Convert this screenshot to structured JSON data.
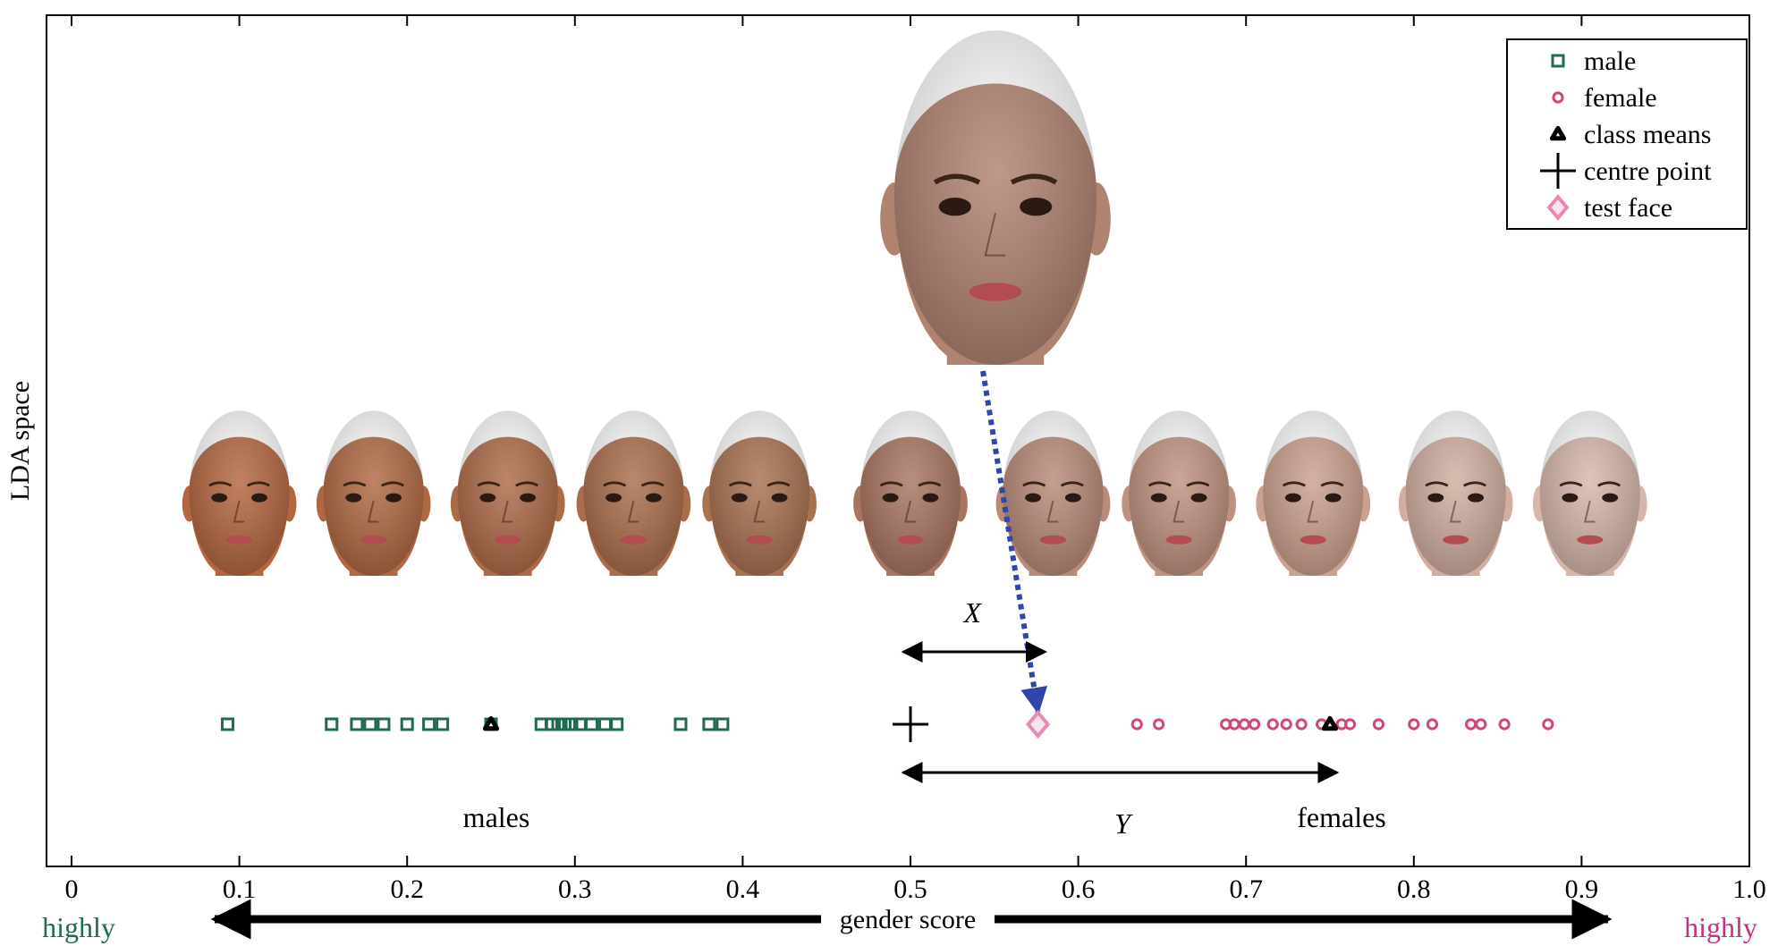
{
  "chart_data": {
    "type": "scatter",
    "ylabel": "LDA space",
    "xlabel": "gender score",
    "xlim": [
      0,
      1.0
    ],
    "x_ticks": [
      "0",
      "0.1",
      "0.2",
      "0.3",
      "0.4",
      "0.5",
      "0.6",
      "0.7",
      "0.8",
      "0.9",
      "1.0"
    ],
    "legend_position": "top-right",
    "series": [
      {
        "name": "male",
        "marker": "square",
        "color": "#1f6b4f",
        "x": [
          0.093,
          0.155,
          0.17,
          0.178,
          0.186,
          0.2,
          0.213,
          0.221,
          0.25,
          0.28,
          0.286,
          0.29,
          0.294,
          0.298,
          0.303,
          0.31,
          0.318,
          0.325,
          0.363,
          0.38,
          0.388
        ]
      },
      {
        "name": "female",
        "marker": "circle",
        "color": "#d1467a",
        "x": [
          0.635,
          0.648,
          0.688,
          0.693,
          0.699,
          0.705,
          0.716,
          0.724,
          0.733,
          0.745,
          0.757,
          0.762,
          0.779,
          0.8,
          0.811,
          0.834,
          0.84,
          0.854,
          0.88
        ]
      },
      {
        "name": "class means",
        "marker": "triangle",
        "color": "#000000",
        "x": [
          0.25,
          0.75
        ]
      },
      {
        "name": "centre point",
        "marker": "plus",
        "color": "#000000",
        "x": [
          0.5
        ]
      },
      {
        "name": "test face",
        "marker": "diamond",
        "color": "#e888b4",
        "x": [
          0.576
        ]
      }
    ],
    "annotations": {
      "x_label": "X",
      "y_label": "Y",
      "males_label": "males",
      "females_label": "females",
      "highly_male": "highly",
      "highly_female": "highly"
    },
    "face_gallery_x": [
      0.1,
      0.18,
      0.26,
      0.335,
      0.41,
      0.5,
      0.585,
      0.66,
      0.74,
      0.825,
      0.905
    ],
    "face_tones": [
      "#b4663f",
      "#b06842",
      "#ad6a47",
      "#aa6d4b",
      "#a87150",
      "#a87460",
      "#b88a78",
      "#bf9180",
      "#caa08e",
      "#d2aea0",
      "#d6b6aa"
    ],
    "colors": {
      "male": "#1f6b4f",
      "female": "#d1467a",
      "test_face": "#e888b4",
      "test_arrow": "#2f46a8"
    }
  }
}
